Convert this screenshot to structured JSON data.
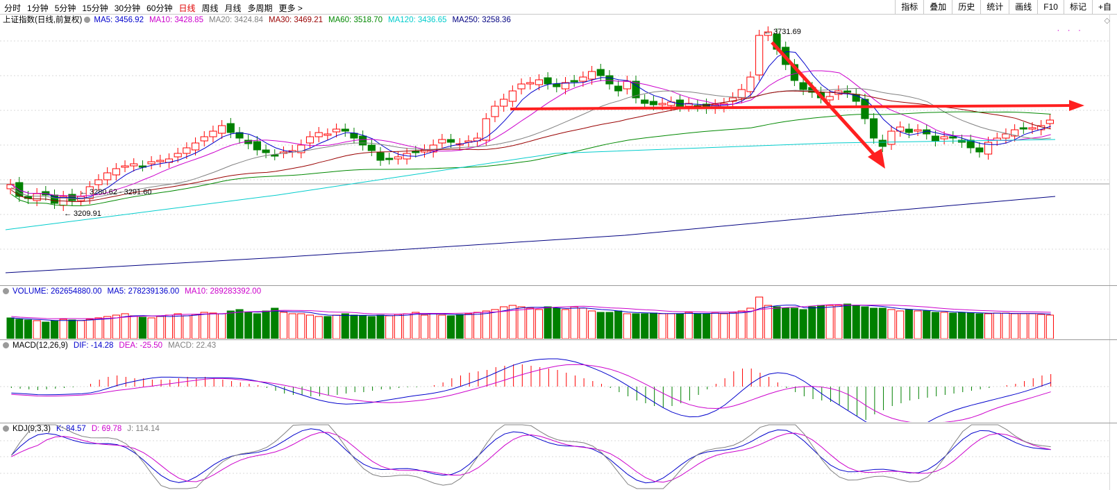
{
  "toolbar": {
    "periods": [
      "分时",
      "1分钟",
      "5分钟",
      "15分钟",
      "30分钟",
      "60分钟",
      "日线",
      "周线",
      "月线",
      "多周期",
      "更多 >"
    ],
    "active_period": "日线",
    "right_buttons": [
      "指标",
      "叠加",
      "历史",
      "统计",
      "画线",
      "F10",
      "标记",
      "+自"
    ]
  },
  "main_panel": {
    "title": "上证指数(日线,前复权)",
    "ma": [
      {
        "label": "MA5: 3456.92",
        "color": "#0000cc"
      },
      {
        "label": "MA10: 3428.85",
        "color": "#cc00cc"
      },
      {
        "label": "MA20: 3424.84",
        "color": "#808080"
      },
      {
        "label": "MA30: 3469.21",
        "color": "#990000"
      },
      {
        "label": "MA60: 3518.70",
        "color": "#008800"
      },
      {
        "label": "MA120: 3436.65",
        "color": "#00cccc"
      },
      {
        "label": "MA250: 3258.36",
        "color": "#000080"
      }
    ],
    "annotations": {
      "high": "3731.69",
      "low": "3209.91",
      "range": "3280.62 - 3291.60"
    }
  },
  "volume_panel": {
    "labels": [
      {
        "label": "VOLUME: 262654880.00",
        "color": "#0000cc"
      },
      {
        "label": "MA5: 278239136.00",
        "color": "#0000cc"
      },
      {
        "label": "MA10: 289283392.00",
        "color": "#cc00cc"
      }
    ]
  },
  "macd_panel": {
    "labels": [
      {
        "label": "MACD(12,26,9)",
        "color": "#000000"
      },
      {
        "label": "DIF: -14.28",
        "color": "#0000cc"
      },
      {
        "label": "DEA: -25.50",
        "color": "#cc00cc"
      },
      {
        "label": "MACD: 22.43",
        "color": "#808080"
      }
    ]
  },
  "kdj_panel": {
    "labels": [
      {
        "label": "KDJ(9,3,3)",
        "color": "#000000"
      },
      {
        "label": "K: 84.57",
        "color": "#0000cc"
      },
      {
        "label": "D: 69.78",
        "color": "#cc00cc"
      },
      {
        "label": "J: 114.14",
        "color": "#808080"
      }
    ]
  },
  "colors": {
    "up": "#ff0000",
    "down": "#008000",
    "arrow": "#ff2020"
  }
}
